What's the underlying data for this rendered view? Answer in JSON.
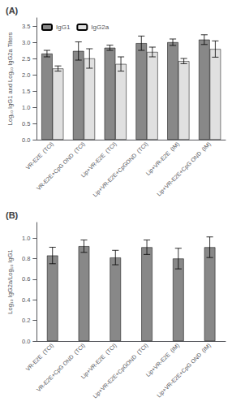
{
  "chart_data": [
    {
      "type": "bar",
      "title": "(A)",
      "ylabel": "Log₁₀ IgG1 and Log₁₀ IgG2a Titers",
      "categories": [
        "VR-E2E  (TCI)",
        "VR-E2E+CpG OND  (TCI)",
        "Lip+VR-E2E  (TCI)",
        "Lip+VR-E2E+CpGOND  (TCI)",
        "Lip+VR-E2E  (IM)",
        "Lip+VR-E2E+CpG OND  (IM)"
      ],
      "series": [
        {
          "name": "IgG1",
          "color": "#888888",
          "values": [
            2.65,
            2.73,
            2.83,
            2.97,
            3.0,
            3.08
          ],
          "errors": [
            0.1,
            0.28,
            0.08,
            0.22,
            0.1,
            0.15
          ]
        },
        {
          "name": "IgG2a",
          "color": "#e0e0e0",
          "values": [
            2.19,
            2.5,
            2.33,
            2.7,
            2.42,
            2.79
          ],
          "errors": [
            0.08,
            0.3,
            0.22,
            0.15,
            0.08,
            0.25
          ]
        }
      ],
      "ylim": [
        0,
        3.75
      ],
      "yticks": [
        {
          "value": 0.0,
          "label": "0.0"
        },
        0.5,
        {
          "value": 1.0,
          "label": "1.0"
        },
        1.5,
        {
          "value": 2.0,
          "label": "2.0"
        },
        2.5,
        {
          "value": 3.0,
          "label": "3.0"
        },
        3.5
      ],
      "legend": "upper left",
      "grid": false
    },
    {
      "type": "bar",
      "title": "(B)",
      "ylabel": "Log₁₀ IgG2a/Log₁₀ IgG1",
      "categories": [
        "VR-E2E  (TCI)",
        "VR-E2E+CpG OND  (TCI)",
        "Lip+VR-E2E  (TCI)",
        "Lip+VR-E2E+CpGOND  (TCI)",
        "Lip+VR-E2E  (IM)",
        "Lip+VR-E2E+CpG OND  (IM)"
      ],
      "values": [
        0.83,
        0.92,
        0.81,
        0.91,
        0.8,
        0.91
      ],
      "errors": [
        0.08,
        0.06,
        0.07,
        0.07,
        0.1,
        0.1
      ],
      "color": "#888888",
      "ylim": [
        0,
        1.15
      ],
      "yticks": [
        {
          "value": 0.0,
          "label": "0.0"
        },
        0.2,
        0.4,
        0.6,
        0.8,
        {
          "value": 1.0,
          "label": "1.0"
        }
      ],
      "grid": false
    }
  ]
}
